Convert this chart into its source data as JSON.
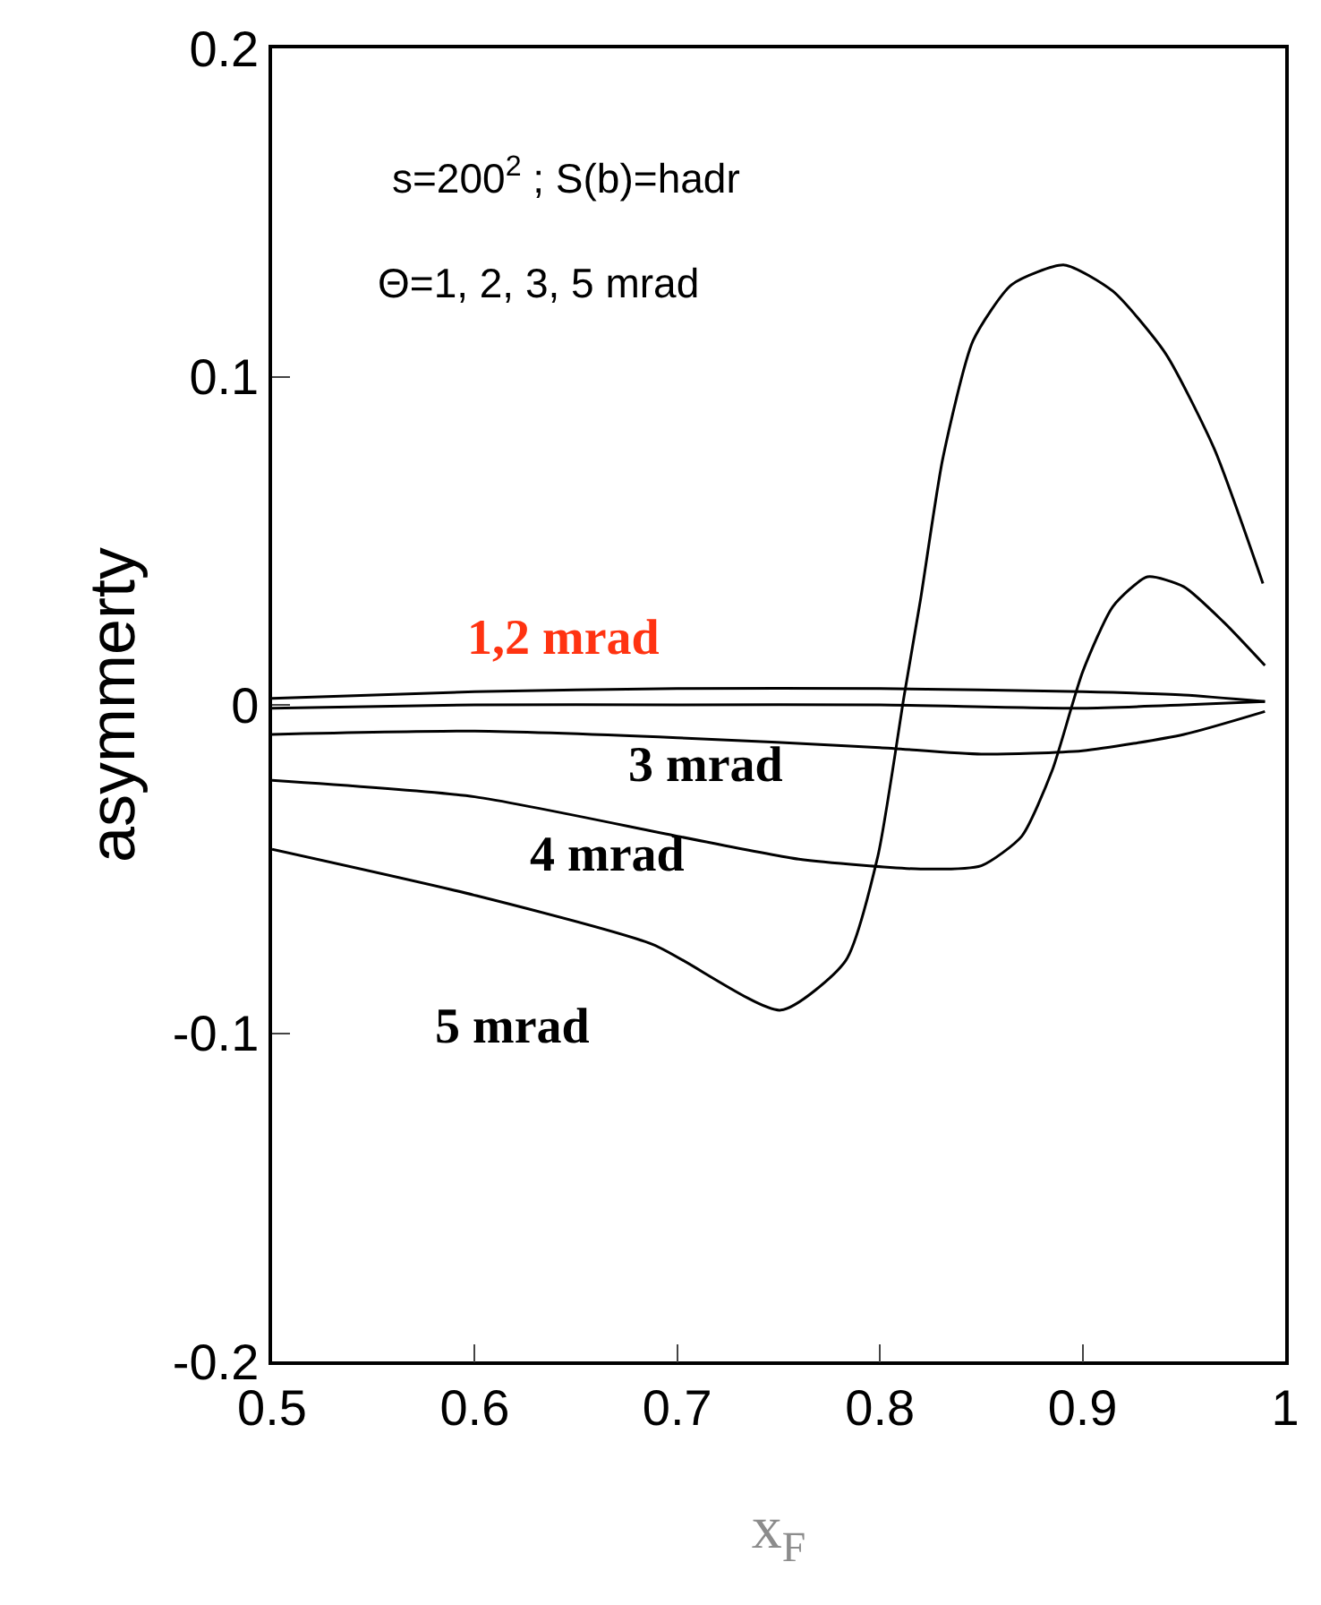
{
  "chart_data": {
    "type": "line",
    "xlabel": "x$_{F}$",
    "ylabel": "asymmerty",
    "xlim": [
      0.5,
      1
    ],
    "ylim": [
      -0.2,
      0.2
    ],
    "xticks": [
      0.5,
      0.6,
      0.7,
      0.8,
      0.9,
      1
    ],
    "yticks": [
      -0.2,
      -0.1,
      0,
      0.1,
      0.2
    ],
    "marker": "none",
    "line_style": "solid",
    "series": [
      {
        "color": "#000000",
        "x": [
          0.5,
          0.6,
          0.7,
          0.8,
          0.9,
          0.95,
          0.99
        ],
        "values": [
          0.002,
          0.004,
          0.005,
          0.005,
          0.004,
          0.003,
          0.001
        ]
      },
      {
        "color": "#000000",
        "x": [
          0.5,
          0.6,
          0.7,
          0.8,
          0.9,
          0.95,
          0.99
        ],
        "values": [
          -0.001,
          0.0,
          0.0,
          0.0,
          -0.001,
          0.0,
          0.001
        ]
      },
      {
        "color": "#000000",
        "x": [
          0.5,
          0.6,
          0.7,
          0.8,
          0.85,
          0.9,
          0.95,
          0.99
        ],
        "values": [
          -0.009,
          -0.008,
          -0.01,
          -0.013,
          -0.015,
          -0.014,
          -0.009,
          -0.002
        ]
      },
      {
        "color": "#000000",
        "x": [
          0.5,
          0.6,
          0.7,
          0.76,
          0.82,
          0.85,
          0.87,
          0.885,
          0.9,
          0.915,
          0.932,
          0.95,
          0.97,
          0.99
        ],
        "values": [
          -0.023,
          -0.028,
          -0.04,
          -0.047,
          -0.05,
          -0.049,
          -0.04,
          -0.02,
          0.01,
          0.03,
          0.039,
          0.036,
          0.025,
          0.012
        ]
      },
      {
        "color": "#000000",
        "x": [
          0.5,
          0.6,
          0.688,
          0.751,
          0.783,
          0.799,
          0.812,
          0.82,
          0.831,
          0.846,
          0.865,
          0.891,
          0.915,
          0.941,
          0.965,
          0.989
        ],
        "values": [
          -0.044,
          -0.058,
          -0.073,
          -0.093,
          -0.078,
          -0.046,
          0.003,
          0.032,
          0.075,
          0.111,
          0.128,
          0.134,
          0.126,
          0.107,
          0.078,
          0.037
        ]
      }
    ],
    "annotations": [
      "s=200$^{2}$ ; S(b)=hadr",
      "Θ=1, 2, 3, 5 mrad",
      "1,2 mrad",
      "3 mrad",
      "4 mrad",
      "5 mrad"
    ]
  }
}
